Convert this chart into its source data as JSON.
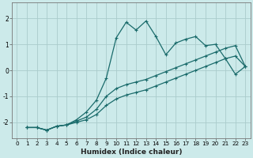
{
  "xlabel": "Humidex (Indice chaleur)",
  "bg_color": "#cceaea",
  "grid_color": "#aacccc",
  "line_color": "#1a6b6b",
  "xlim": [
    -0.5,
    23.5
  ],
  "ylim": [
    -2.6,
    2.6
  ],
  "yticks": [
    -2,
    -1,
    0,
    1,
    2
  ],
  "xticks": [
    0,
    1,
    2,
    3,
    4,
    5,
    6,
    7,
    8,
    9,
    10,
    11,
    12,
    13,
    14,
    15,
    16,
    17,
    18,
    19,
    20,
    21,
    22,
    23
  ],
  "series_wiggly": {
    "x": [
      1,
      2,
      3,
      4,
      5,
      6,
      7,
      8,
      9,
      10,
      11,
      12,
      13,
      14,
      15,
      16,
      17,
      18,
      19,
      20,
      21,
      22,
      23
    ],
    "y": [
      -2.2,
      -2.2,
      -2.3,
      -2.15,
      -2.1,
      -1.9,
      -1.6,
      -1.15,
      -0.3,
      1.25,
      1.85,
      1.55,
      1.9,
      1.3,
      0.6,
      1.05,
      1.2,
      1.3,
      0.95,
      1.0,
      0.45,
      -0.15,
      0.15
    ]
  },
  "series_upper": {
    "x": [
      1,
      2,
      3,
      4,
      5,
      6,
      7,
      8,
      9,
      10,
      11,
      12,
      13,
      14,
      15,
      16,
      17,
      18,
      19,
      20,
      21,
      22,
      23
    ],
    "y": [
      -2.2,
      -2.2,
      -2.3,
      -2.15,
      -2.1,
      -1.95,
      -1.8,
      -1.5,
      -1.0,
      -0.7,
      -0.55,
      -0.45,
      -0.35,
      -0.2,
      -0.05,
      0.1,
      0.25,
      0.4,
      0.55,
      0.7,
      0.85,
      0.95,
      0.15
    ]
  },
  "series_lower": {
    "x": [
      1,
      2,
      3,
      4,
      5,
      6,
      7,
      8,
      9,
      10,
      11,
      12,
      13,
      14,
      15,
      16,
      17,
      18,
      19,
      20,
      21,
      22,
      23
    ],
    "y": [
      -2.2,
      -2.2,
      -2.3,
      -2.15,
      -2.1,
      -2.0,
      -1.9,
      -1.7,
      -1.35,
      -1.1,
      -0.95,
      -0.85,
      -0.75,
      -0.6,
      -0.45,
      -0.3,
      -0.15,
      0.0,
      0.15,
      0.3,
      0.45,
      0.55,
      0.15
    ]
  }
}
